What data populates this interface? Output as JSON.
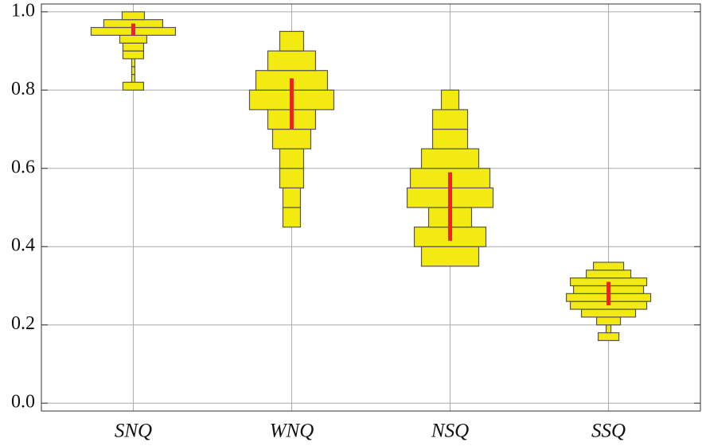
{
  "chart_data": {
    "type": "histogram-distribution",
    "categories": [
      "SNQ",
      "WNQ",
      "NSQ",
      "SSQ"
    ],
    "fill": "#f2ea10",
    "edge": "#555555",
    "range_color": "#ee2222",
    "ylim": [
      -0.02,
      1.02
    ],
    "yticks": [
      {
        "value": 0,
        "label": "0.0"
      },
      0.2,
      0.4,
      0.6,
      0.8,
      {
        "value": 1,
        "label": "1.0"
      }
    ],
    "grid": true,
    "series": [
      {
        "bins": [
          0.8,
          0.82,
          0.84,
          0.86,
          0.88,
          0.9,
          0.92,
          0.94,
          0.96,
          0.98,
          1.0
        ],
        "counts": [
          13,
          2,
          2,
          2,
          13,
          13,
          17,
          53,
          37,
          14
        ],
        "range": [
          0.94,
          0.97
        ]
      },
      {
        "bins": [
          0.45,
          0.5,
          0.55,
          0.6,
          0.65,
          0.7,
          0.75,
          0.8,
          0.85,
          0.9,
          0.95
        ],
        "counts": [
          11,
          11,
          15,
          15,
          24,
          30,
          53,
          45,
          30,
          15
        ],
        "range": [
          0.7,
          0.83
        ]
      },
      {
        "bins": [
          0.35,
          0.4,
          0.45,
          0.5,
          0.55,
          0.6,
          0.65,
          0.7,
          0.75,
          0.8
        ],
        "counts": [
          36,
          45,
          27,
          54,
          50,
          36,
          22,
          22,
          11
        ],
        "range": [
          0.415,
          0.59
        ]
      },
      {
        "bins": [
          0.16,
          0.18,
          0.2,
          0.22,
          0.24,
          0.26,
          0.28,
          0.3,
          0.32,
          0.34,
          0.36
        ],
        "counts": [
          13,
          3,
          15,
          34,
          48,
          53,
          44,
          48,
          28,
          19
        ],
        "range": [
          0.25,
          0.31
        ]
      }
    ]
  }
}
